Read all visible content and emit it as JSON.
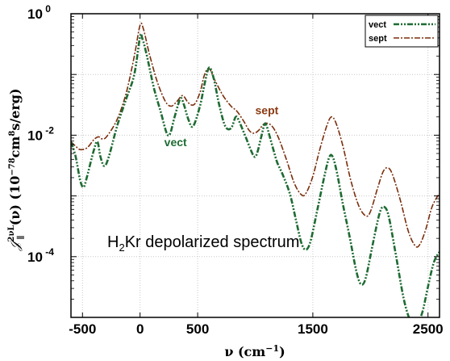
{
  "chart_data": {
    "type": "line",
    "title": "",
    "annotation_title": {
      "main": "H",
      "sub": "2",
      "rest": "Kr  depolarized spectrum"
    },
    "xlabel": "ν (cm⁻¹)",
    "ylabel": "𝒥∥²ᵛᴸ(ν) (10⁻⁷⁸cm⁸s/erg)",
    "xlim": [
      -600,
      2600
    ],
    "ylim_log10": [
      -5,
      0
    ],
    "y_scale": "log",
    "x_ticks": [
      {
        "value": -500,
        "label": "-500"
      },
      {
        "value": 0,
        "label": "0"
      },
      {
        "value": 500,
        "label": "500"
      },
      {
        "value": 1500,
        "label": "1500"
      },
      {
        "value": 2500,
        "label": "2500"
      }
    ],
    "y_ticks": [
      {
        "value": 0,
        "base": "10",
        "exp": "0"
      },
      {
        "value": -2,
        "base": "10",
        "exp": "-2"
      },
      {
        "value": -4,
        "base": "10",
        "exp": "-4"
      }
    ],
    "grid": true,
    "legend_position": "top-right",
    "series": [
      {
        "name": "vect",
        "color": "#1e6b33",
        "points": [
          [
            -600,
            0.0078
          ],
          [
            -560,
            0.0045
          ],
          [
            -520,
            0.0018
          ],
          [
            -490,
            0.0014
          ],
          [
            -460,
            0.0021
          ],
          [
            -400,
            0.0058
          ],
          [
            -370,
            0.0078
          ],
          [
            -345,
            0.0045
          ],
          [
            -310,
            0.0031
          ],
          [
            -270,
            0.0045
          ],
          [
            -200,
            0.014
          ],
          [
            -120,
            0.04
          ],
          [
            -50,
            0.1
          ],
          [
            0,
            0.42
          ],
          [
            20,
            0.39
          ],
          [
            60,
            0.2
          ],
          [
            120,
            0.06
          ],
          [
            180,
            0.024
          ],
          [
            230,
            0.011
          ],
          [
            260,
            0.0105
          ],
          [
            300,
            0.02
          ],
          [
            350,
            0.04
          ],
          [
            380,
            0.032
          ],
          [
            420,
            0.018
          ],
          [
            460,
            0.014
          ],
          [
            520,
            0.03
          ],
          [
            560,
            0.07
          ],
          [
            600,
            0.13
          ],
          [
            640,
            0.085
          ],
          [
            690,
            0.03
          ],
          [
            740,
            0.014
          ],
          [
            790,
            0.013
          ],
          [
            830,
            0.02
          ],
          [
            860,
            0.017
          ],
          [
            920,
            0.009
          ],
          [
            980,
            0.0048
          ],
          [
            1010,
            0.0047
          ],
          [
            1050,
            0.009
          ],
          [
            1080,
            0.015
          ],
          [
            1100,
            0.014
          ],
          [
            1150,
            0.0065
          ],
          [
            1190,
            0.0036
          ],
          [
            1240,
            0.0022
          ],
          [
            1300,
            0.0011
          ],
          [
            1350,
            0.00043
          ],
          [
            1400,
            0.00017
          ],
          [
            1440,
            0.00013
          ],
          [
            1480,
            0.00018
          ],
          [
            1540,
            0.0006
          ],
          [
            1600,
            0.0021
          ],
          [
            1640,
            0.0042
          ],
          [
            1670,
            0.0045
          ],
          [
            1710,
            0.0024
          ],
          [
            1760,
            0.00075
          ],
          [
            1820,
            0.00021
          ],
          [
            1880,
            5.5e-05
          ],
          [
            1920,
            3.5e-05
          ],
          [
            1960,
            4.5e-05
          ],
          [
            2020,
            0.00016
          ],
          [
            2080,
            0.00052
          ],
          [
            2120,
            0.00066
          ],
          [
            2160,
            0.00045
          ],
          [
            2220,
            0.00011
          ],
          [
            2290,
            2e-05
          ],
          [
            2350,
            8.5e-06
          ],
          [
            2400,
            7.5e-06
          ],
          [
            2450,
            1.2e-05
          ],
          [
            2500,
            3.2e-05
          ],
          [
            2550,
            8e-05
          ],
          [
            2600,
            0.00012
          ]
        ]
      },
      {
        "name": "sept",
        "color": "#7a2e0c",
        "points": [
          [
            -600,
            0.0078
          ],
          [
            -560,
            0.0066
          ],
          [
            -520,
            0.0058
          ],
          [
            -460,
            0.0062
          ],
          [
            -400,
            0.0085
          ],
          [
            -360,
            0.0094
          ],
          [
            -330,
            0.0087
          ],
          [
            -290,
            0.0095
          ],
          [
            -200,
            0.018
          ],
          [
            -120,
            0.05
          ],
          [
            -50,
            0.2
          ],
          [
            0,
            0.65
          ],
          [
            30,
            0.55
          ],
          [
            80,
            0.22
          ],
          [
            150,
            0.075
          ],
          [
            220,
            0.036
          ],
          [
            270,
            0.03
          ],
          [
            320,
            0.036
          ],
          [
            370,
            0.045
          ],
          [
            420,
            0.034
          ],
          [
            470,
            0.032
          ],
          [
            520,
            0.05
          ],
          [
            560,
            0.1
          ],
          [
            600,
            0.125
          ],
          [
            650,
            0.08
          ],
          [
            720,
            0.045
          ],
          [
            790,
            0.03
          ],
          [
            840,
            0.025
          ],
          [
            900,
            0.017
          ],
          [
            950,
            0.0118
          ],
          [
            990,
            0.0108
          ],
          [
            1030,
            0.012
          ],
          [
            1080,
            0.0155
          ],
          [
            1140,
            0.0145
          ],
          [
            1200,
            0.0092
          ],
          [
            1270,
            0.004
          ],
          [
            1340,
            0.0016
          ],
          [
            1400,
            0.00105
          ],
          [
            1440,
            0.0011
          ],
          [
            1500,
            0.0021
          ],
          [
            1560,
            0.0058
          ],
          [
            1620,
            0.014
          ],
          [
            1660,
            0.02
          ],
          [
            1700,
            0.016
          ],
          [
            1760,
            0.0068
          ],
          [
            1830,
            0.0018
          ],
          [
            1900,
            0.00068
          ],
          [
            1960,
            0.00047
          ],
          [
            2000,
            0.00055
          ],
          [
            2060,
            0.0013
          ],
          [
            2110,
            0.0025
          ],
          [
            2150,
            0.0029
          ],
          [
            2190,
            0.0023
          ],
          [
            2260,
            0.00085
          ],
          [
            2330,
            0.00026
          ],
          [
            2390,
            0.00015
          ],
          [
            2430,
            0.00016
          ],
          [
            2480,
            0.00028
          ],
          [
            2530,
            0.00062
          ],
          [
            2570,
            0.0009
          ],
          [
            2600,
            0.0011
          ]
        ]
      }
    ],
    "annotations": [
      {
        "text": "vect",
        "series": "vect",
        "x": 210,
        "y": 0.0066,
        "color": "#1e6b33"
      },
      {
        "text": "sept",
        "series": "sept",
        "x": 1000,
        "y": 0.022,
        "color": "#8b3a12"
      }
    ]
  }
}
